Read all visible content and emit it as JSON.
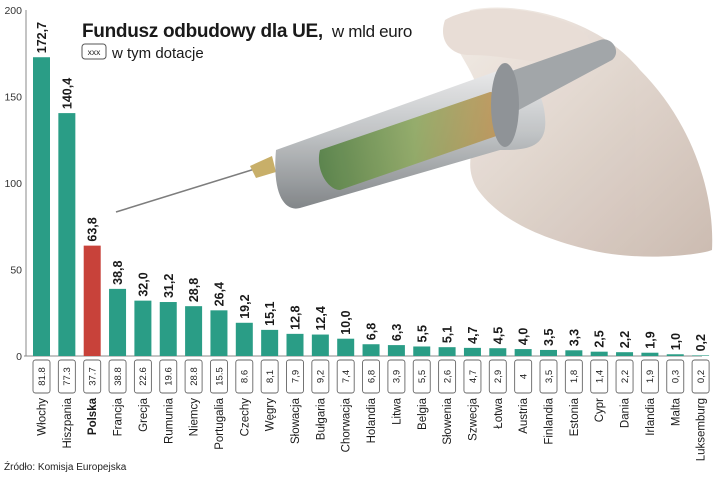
{
  "chart_data": {
    "type": "bar",
    "title": "Fundusz odbudowy dla UE,",
    "subtitle": "w mld euro",
    "legend_box_label": "xxx",
    "legend_text": "w tym dotacje",
    "yticks": [
      "0",
      "50",
      "100",
      "150",
      "200"
    ],
    "ylim": [
      0,
      200
    ],
    "categories": [
      "Włochy",
      "Hiszpania",
      "Polska",
      "Francja",
      "Grecja",
      "Rumunia",
      "Niemcy",
      "Portugalia",
      "Czechy",
      "Węgry",
      "Słowacja",
      "Bułgaria",
      "Chorwacja",
      "Holandia",
      "Litwa",
      "Belgia",
      "Słowenia",
      "Szwecja",
      "Łotwa",
      "Austria",
      "Finlandia",
      "Estonia",
      "Cypr",
      "Dania",
      "Irlandia",
      "Malta",
      "Luksemburg"
    ],
    "values": [
      172.7,
      140.4,
      63.8,
      38.8,
      32.0,
      31.2,
      28.8,
      26.4,
      19.2,
      15.1,
      12.8,
      12.4,
      10.0,
      6.8,
      6.3,
      5.5,
      5.1,
      4.7,
      4.5,
      4.0,
      3.5,
      3.3,
      2.5,
      2.2,
      1.9,
      1.0,
      0.2
    ],
    "value_labels": [
      "172,7",
      "140,4",
      "63,8",
      "38,8",
      "32,0",
      "31,2",
      "28,8",
      "26,4",
      "19,2",
      "15,1",
      "12,8",
      "12,4",
      "10,0",
      "6,8",
      "6,3",
      "5,5",
      "5,1",
      "4,7",
      "4,5",
      "4,0",
      "3,5",
      "3,3",
      "2,5",
      "2,2",
      "1,9",
      "1,0",
      "0,2"
    ],
    "grants_labels": [
      "81.8",
      "77.3",
      "37.7",
      "38.8",
      "22.6",
      "19.6",
      "28.8",
      "15.5",
      "8.6",
      "8,1",
      "7,9",
      "9,2",
      "7,4",
      "6,8",
      "3,9",
      "5,5",
      "2,6",
      "4,7",
      "2,9",
      "4",
      "3,5",
      "1,8",
      "1,4",
      "2,2",
      "1,9",
      "0,3",
      "0,2"
    ],
    "highlight": "Polska",
    "colors": {
      "bar": "#2a9d86",
      "highlight": "#c8423a",
      "text": "#1a1a1a",
      "axis": "#888888"
    },
    "grid": false
  },
  "source": "Źródło: Komisja Europejska"
}
